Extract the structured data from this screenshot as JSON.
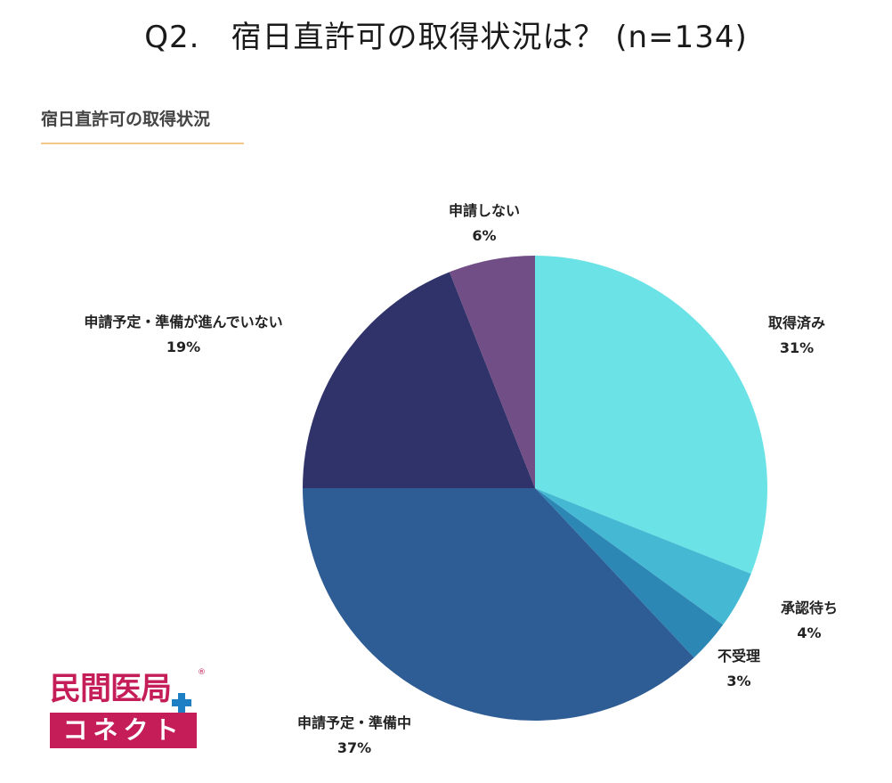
{
  "page": {
    "question_title": "Q2.　宿日直許可の取得状況は？ (n=134)",
    "chart_subtitle": "宿日直許可の取得状況"
  },
  "logo": {
    "top_text": "民間医局",
    "bottom_text": "コネクト",
    "brand_color": "#c41d58",
    "plus_color": "#1e7fc4",
    "registered_mark": "®"
  },
  "chart_data": {
    "type": "pie",
    "start_angle_deg": 0,
    "direction": "clockwise",
    "slices": [
      {
        "label": "取得済み",
        "value": 31,
        "value_label": "31%",
        "color": "#6be3e6"
      },
      {
        "label": "承認待ち",
        "value": 4,
        "value_label": "4%",
        "color": "#45b8d4"
      },
      {
        "label": "不受理",
        "value": 3,
        "value_label": "3%",
        "color": "#2d87b5"
      },
      {
        "label": "申請予定・準備中",
        "value": 37,
        "value_label": "37%",
        "color": "#2e5c94"
      },
      {
        "label": "申請予定・準備が進んでいない",
        "value": 19,
        "value_label": "19%",
        "color": "#30336a"
      },
      {
        "label": "申請しない",
        "value": 6,
        "value_label": "6%",
        "color": "#714e85"
      }
    ]
  }
}
